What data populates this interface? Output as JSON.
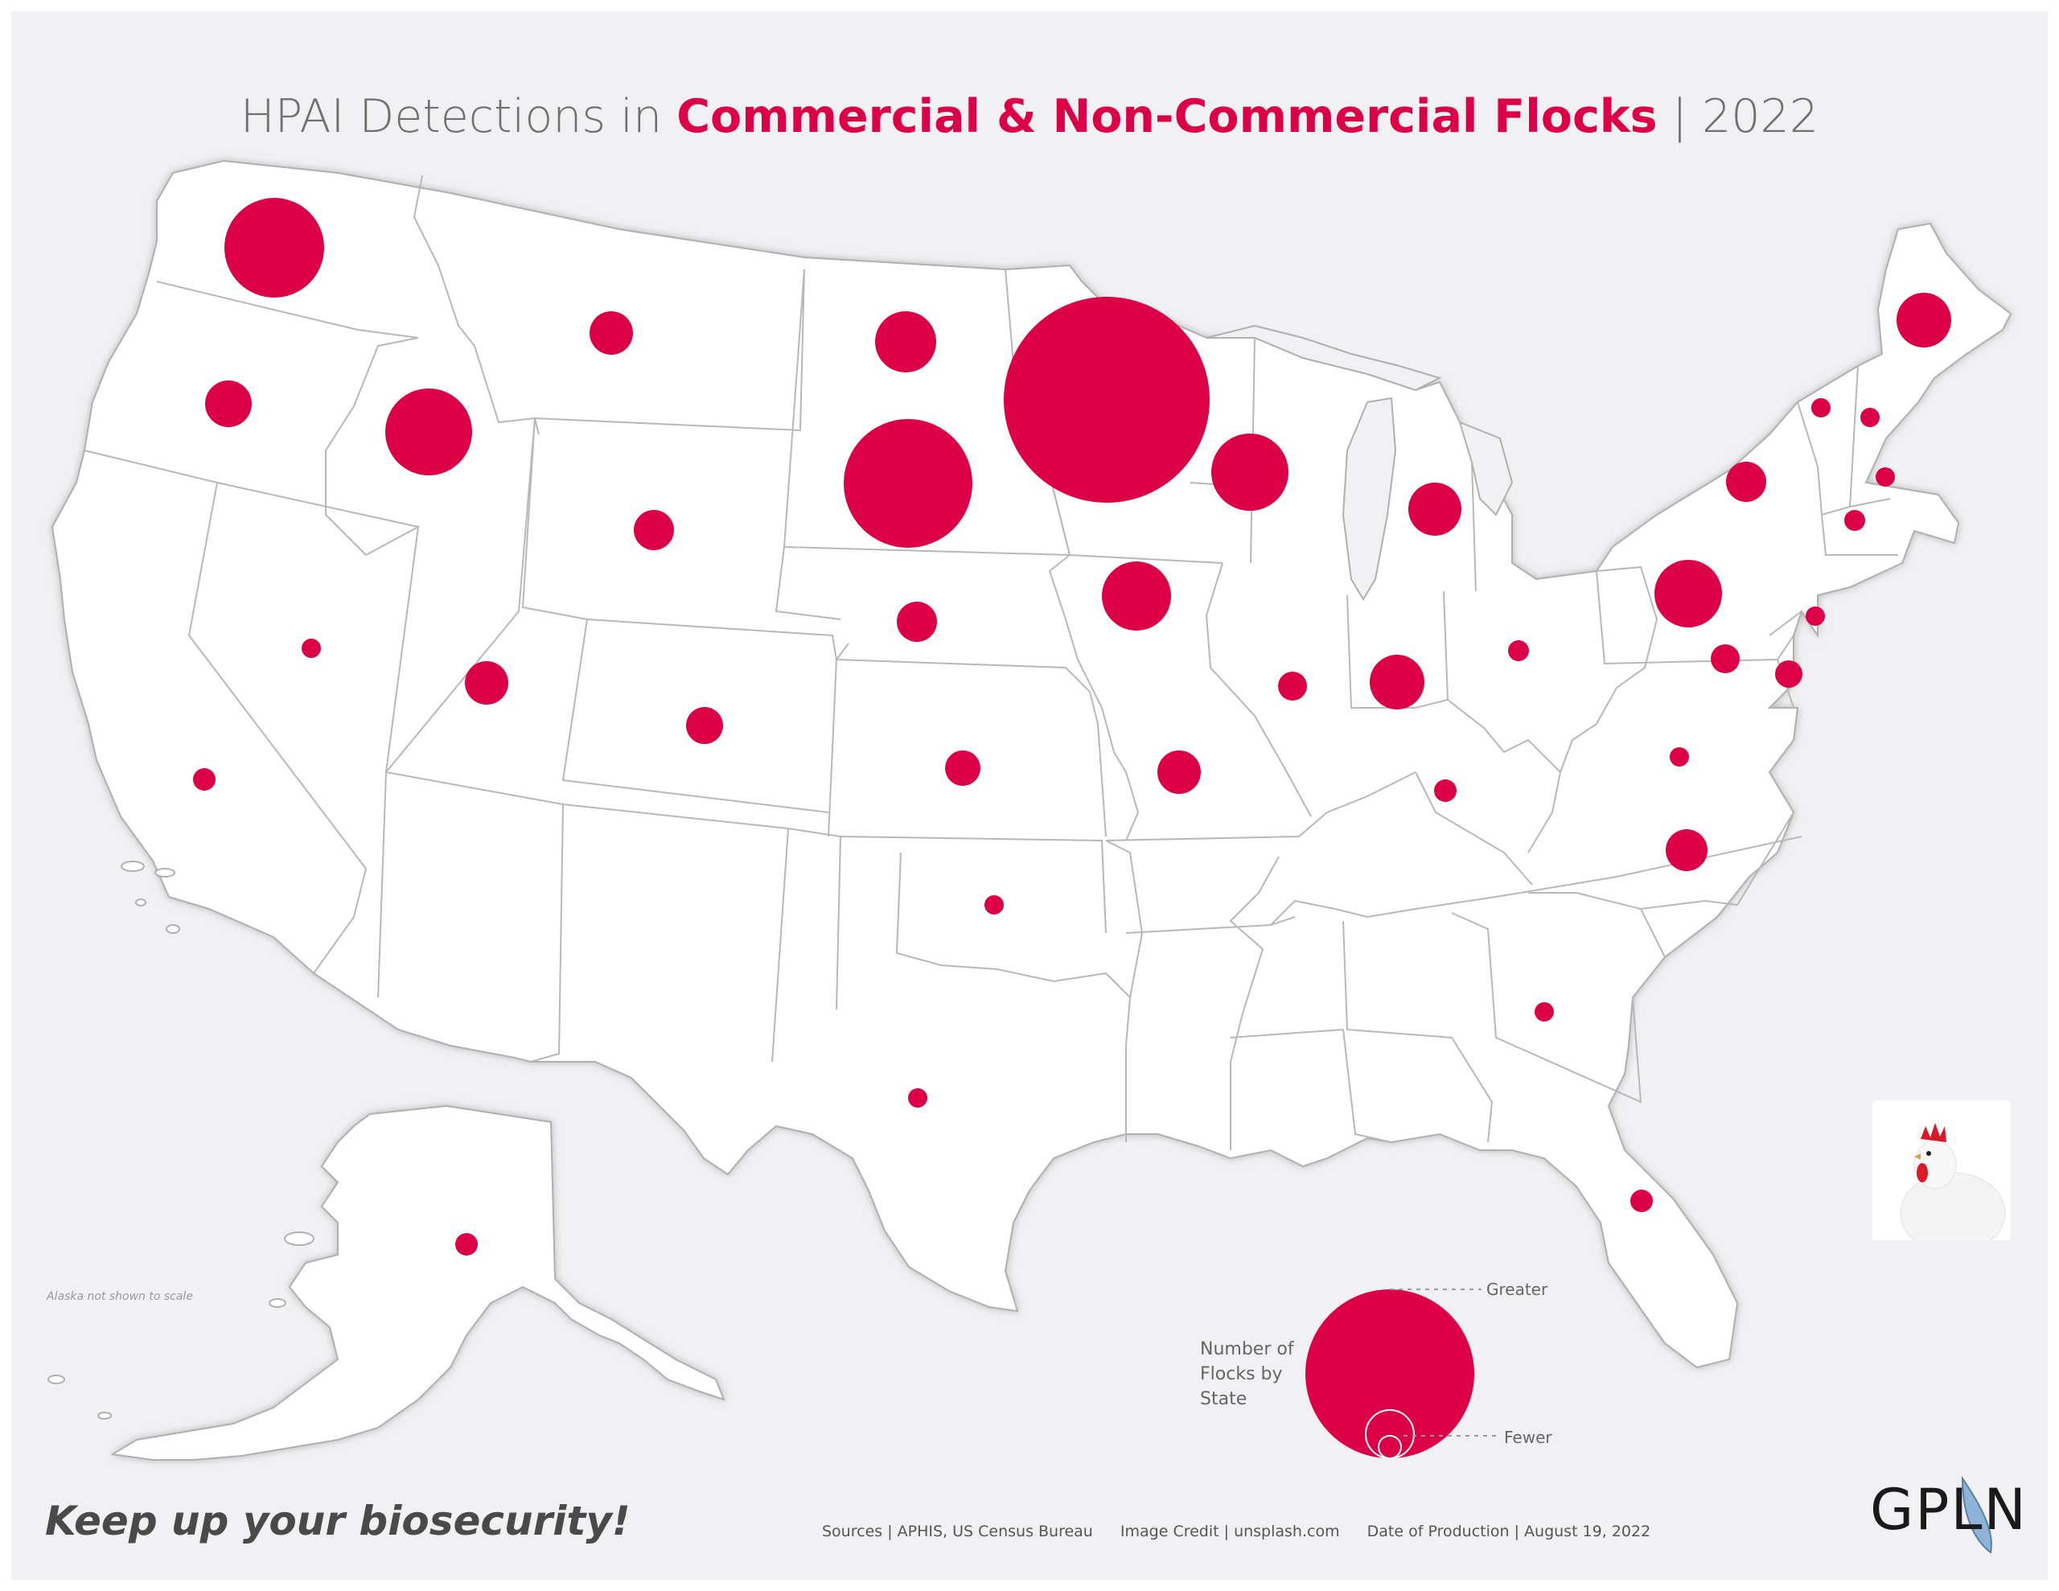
{
  "title": {
    "prefix": "HPAI Detections in ",
    "highlight": "Commercial & Non-Commercial Flocks",
    "suffix": " | 2022"
  },
  "colors": {
    "accent": "#dc0046",
    "background": "#f1f1f3",
    "state_fill": "#ffffff",
    "state_border": "#b8b8b8"
  },
  "alaska_note": "Alaska not shown to scale",
  "legend": {
    "title": "Number of Flocks by State",
    "greater": "Greater",
    "fewer": "Fewer"
  },
  "tagline": "Keep up your biosecurity!",
  "footer": {
    "sources": "Sources | APHIS, US Census Bureau",
    "image_credit": "Image Credit | unsplash.com",
    "date": "Date of Production | August 19, 2022"
  },
  "logo": "GPLN",
  "state_markers": [
    {
      "state": "Washington",
      "size": "very large"
    },
    {
      "state": "Oregon",
      "size": "medium"
    },
    {
      "state": "Idaho",
      "size": "large"
    },
    {
      "state": "Montana",
      "size": "small"
    },
    {
      "state": "North Dakota",
      "size": "medium"
    },
    {
      "state": "Minnesota",
      "size": "largest"
    },
    {
      "state": "South Dakota",
      "size": "very large"
    },
    {
      "state": "Wisconsin",
      "size": "large"
    },
    {
      "state": "Wyoming",
      "size": "small"
    },
    {
      "state": "Michigan",
      "size": "medium"
    },
    {
      "state": "Iowa",
      "size": "large"
    },
    {
      "state": "Nebraska",
      "size": "small"
    },
    {
      "state": "Nevada",
      "size": "tiny"
    },
    {
      "state": "Utah",
      "size": "small"
    },
    {
      "state": "Colorado",
      "size": "small"
    },
    {
      "state": "California",
      "size": "tiny"
    },
    {
      "state": "Kansas",
      "size": "small"
    },
    {
      "state": "Missouri",
      "size": "small"
    },
    {
      "state": "Illinois",
      "size": "tiny"
    },
    {
      "state": "Indiana",
      "size": "medium"
    },
    {
      "state": "Ohio",
      "size": "tiny"
    },
    {
      "state": "Pennsylvania",
      "size": "large"
    },
    {
      "state": "New York",
      "size": "small"
    },
    {
      "state": "Maine",
      "size": "medium"
    },
    {
      "state": "Vermont",
      "size": "tiny"
    },
    {
      "state": "New Hampshire",
      "size": "tiny"
    },
    {
      "state": "Massachusetts",
      "size": "tiny"
    },
    {
      "state": "Connecticut",
      "size": "tiny"
    },
    {
      "state": "New Jersey",
      "size": "tiny"
    },
    {
      "state": "Maryland",
      "size": "small"
    },
    {
      "state": "Delaware",
      "size": "small"
    },
    {
      "state": "Virginia",
      "size": "tiny"
    },
    {
      "state": "Kentucky",
      "size": "tiny"
    },
    {
      "state": "North Carolina",
      "size": "small"
    },
    {
      "state": "Oklahoma",
      "size": "tiny"
    },
    {
      "state": "Texas",
      "size": "tiny"
    },
    {
      "state": "Georgia",
      "size": "tiny"
    },
    {
      "state": "Florida",
      "size": "tiny"
    },
    {
      "state": "Alaska",
      "size": "tiny"
    }
  ]
}
